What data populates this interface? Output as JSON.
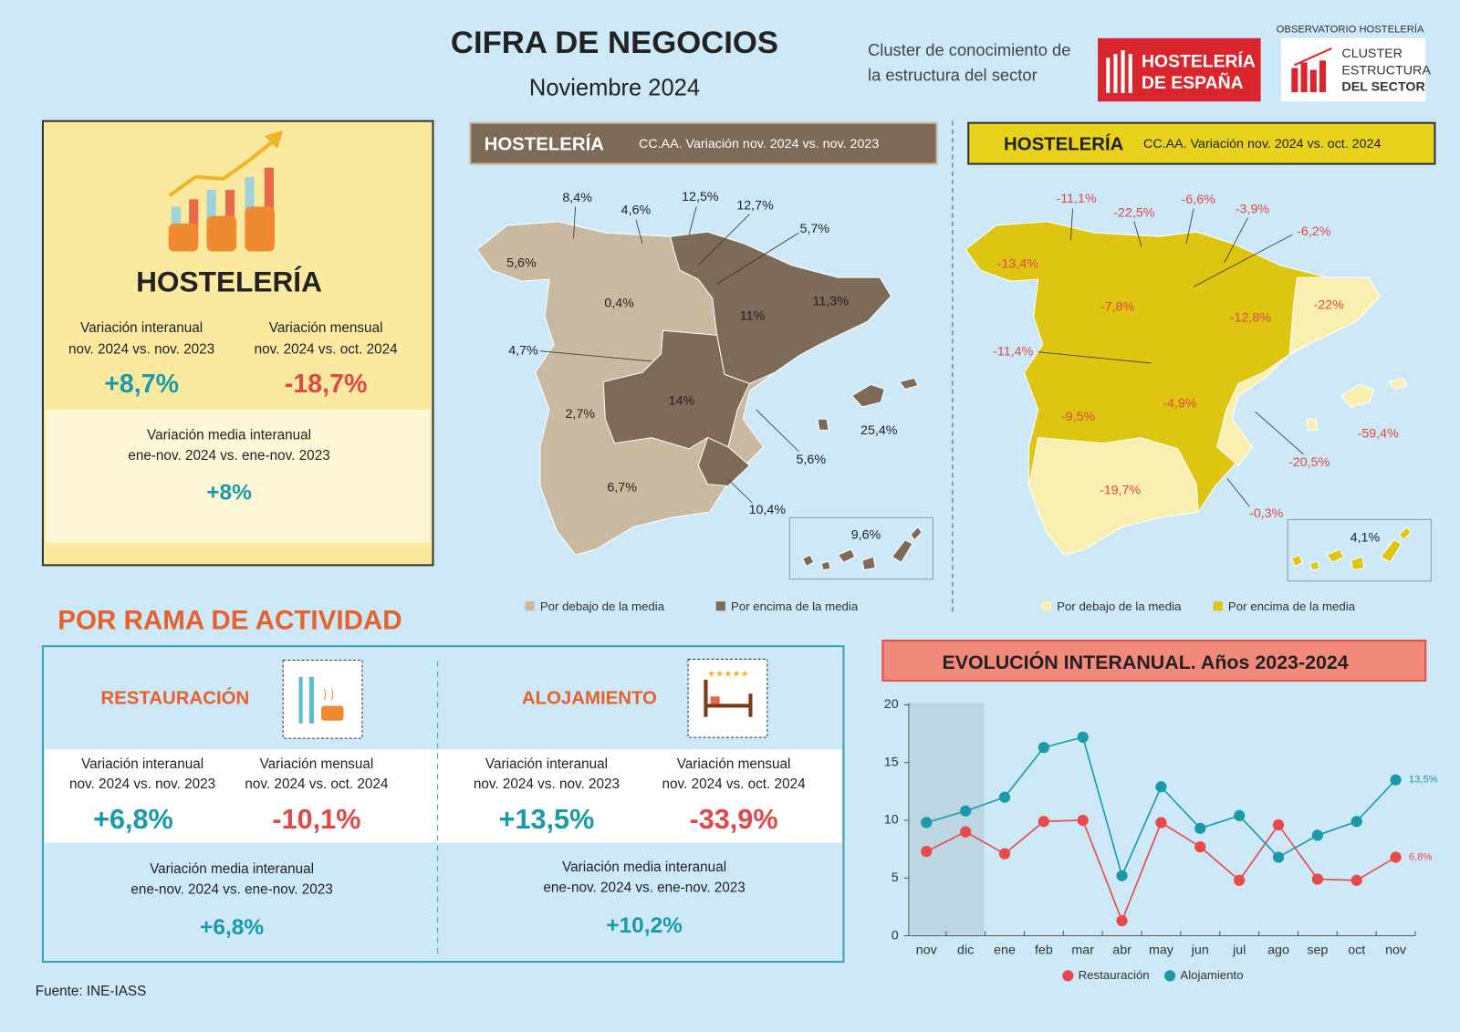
{
  "header": {
    "title": "CIFRA DE NEGOCIOS",
    "subtitle": "Noviembre 2024",
    "tagline": [
      "Cluster de conocimiento de",
      "la estructura del sector"
    ],
    "logo1": [
      "HOSTELERÍA",
      "DE ESPAÑA"
    ],
    "logo2_caption": "OBSERVATORIO HOSTELERÍA",
    "logo2": [
      "CLUSTER",
      "ESTRUCTURA",
      "DEL SECTOR"
    ]
  },
  "summary": {
    "title": "HOSTELERÍA",
    "kpis": [
      {
        "label": [
          "Variación interanual",
          "nov. 2024 vs. nov. 2023"
        ],
        "value": "+8,7%"
      },
      {
        "label": [
          "Variación mensual",
          "nov. 2024 vs. oct. 2024"
        ],
        "value": "-18,7%"
      },
      {
        "label": [
          "Variación media interanual",
          "ene-nov. 2024 vs. ene-nov. 2023"
        ],
        "value": "+8%"
      }
    ]
  },
  "maps": [
    {
      "title": "HOSTELERÍA",
      "subtitle": "CC.AA. Variación nov. 2024 vs. nov. 2023",
      "labels": [
        "8,4%",
        "4,6%",
        "12,5%",
        "12,7%",
        "5,7%",
        "5,6%",
        "0,4%",
        "11,3%",
        "11%",
        "4,7%",
        "14%",
        "2,7%",
        "25,4%",
        "5,6%",
        "6,7%",
        "10,4%",
        "9,6%"
      ],
      "legend": [
        "Por debajo de la media",
        "Por encima de la media"
      ]
    },
    {
      "title": "HOSTELERÍA",
      "subtitle": "CC.AA. Variación nov. 2024 vs. oct. 2024",
      "labels": [
        "-11,1%",
        "-22,5%",
        "-6,6%",
        "-3,9%",
        "-6,2%",
        "-13,4%",
        "-7,8%",
        "-12,8%",
        "-22%",
        "-11,4%",
        "-9,5%",
        "-4,9%",
        "-59,4%",
        "-20,5%",
        "-19,7%",
        "-0,3%",
        "4,1%"
      ],
      "legend": [
        "Por debajo de la media",
        "Por encima de la media"
      ]
    }
  ],
  "branches": {
    "title": "POR RAMA DE ACTIVIDAD",
    "items": [
      {
        "name": "RESTAURACIÓN",
        "kpis": [
          {
            "label": [
              "Variación interanual",
              "nov. 2024 vs. nov. 2023"
            ],
            "value": "+6,8%"
          },
          {
            "label": [
              "Variación mensual",
              "nov. 2024 vs. oct. 2024"
            ],
            "value": "-10,1%"
          },
          {
            "label": [
              "Variación media interanual",
              "ene-nov. 2024 vs. ene-nov. 2023"
            ],
            "value": "+6,8%"
          }
        ]
      },
      {
        "name": "ALOJAMIENTO",
        "kpis": [
          {
            "label": [
              "Variación interanual",
              "nov. 2024 vs. nov. 2023"
            ],
            "value": "+13,5%"
          },
          {
            "label": [
              "Variación mensual",
              "nov. 2024 vs. oct. 2024"
            ],
            "value": "-33,9%"
          },
          {
            "label": [
              "Variación media interanual",
              "ene-nov. 2024 vs. ene-nov. 2023"
            ],
            "value": "+10,2%"
          }
        ]
      }
    ]
  },
  "chart_data": {
    "type": "line",
    "title": "EVOLUCIÓN INTERANUAL. Años 2023-2024",
    "categories": [
      "nov",
      "dic",
      "ene",
      "feb",
      "mar",
      "abr",
      "may",
      "jun",
      "jul",
      "ago",
      "sep",
      "oct",
      "nov"
    ],
    "series": [
      {
        "name": "Restauración",
        "color": "#e84a4a",
        "values": [
          7.3,
          9.0,
          7.1,
          9.9,
          10.0,
          1.3,
          9.8,
          7.7,
          4.8,
          9.6,
          4.9,
          4.8,
          6.8
        ],
        "value_labels": [
          null,
          null,
          null,
          null,
          null,
          null,
          null,
          null,
          null,
          null,
          null,
          null,
          "6,8%"
        ]
      },
      {
        "name": "Alojamiento",
        "color": "#1a9aa8",
        "values": [
          9.8,
          10.8,
          12.0,
          16.3,
          17.2,
          5.2,
          12.9,
          9.3,
          10.4,
          6.8,
          8.7,
          9.9,
          13.5
        ],
        "value_labels": [
          null,
          null,
          null,
          null,
          null,
          null,
          null,
          null,
          null,
          null,
          null,
          null,
          "13,5%"
        ]
      }
    ],
    "ylim": [
      0,
      20
    ],
    "yticks": [
      0,
      5,
      10,
      15,
      20
    ],
    "grid": false
  },
  "source": "Fuente: INE-IASS"
}
